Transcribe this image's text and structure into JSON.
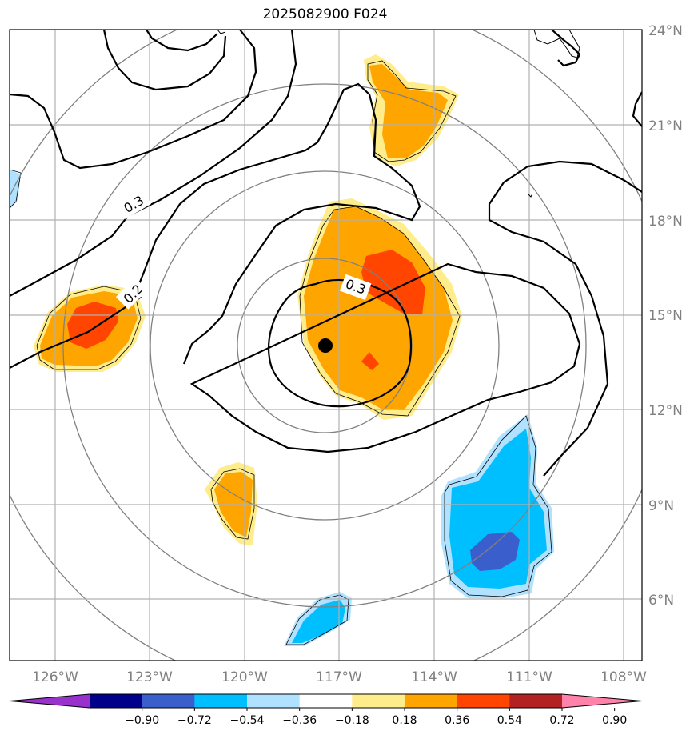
{
  "title": "2025082900 F024",
  "chart_data": {
    "type": "map",
    "title": "2025082900 F024",
    "lon_ticks": [
      "126°W",
      "123°W",
      "120°W",
      "117°W",
      "114°W",
      "111°W",
      "108°W"
    ],
    "lat_ticks": [
      "24°N",
      "21°N",
      "18°N",
      "15°N",
      "12°N",
      "9°N",
      "6°N"
    ],
    "lon_range": [
      -127.5,
      -107.5
    ],
    "lat_range": [
      4,
      24
    ],
    "center_marker": {
      "lon": -117.4,
      "lat": 14.0
    },
    "contour_labels": [
      "0.3",
      "0.2",
      "0.3"
    ],
    "colorbar": {
      "ticks": [
        "−0.90",
        "−0.72",
        "−0.54",
        "−0.36",
        "−0.18",
        "0.18",
        "0.36",
        "0.54",
        "0.72",
        "0.90"
      ],
      "colors": [
        "#9932CC",
        "#00008B",
        "#3A5FCD",
        "#00BFFF",
        "#B0E2FF",
        "#FFFFFF",
        "#FFEC8B",
        "#FFA500",
        "#FF4500",
        "#B22222",
        "#FF82AB"
      ]
    },
    "grid": true
  }
}
